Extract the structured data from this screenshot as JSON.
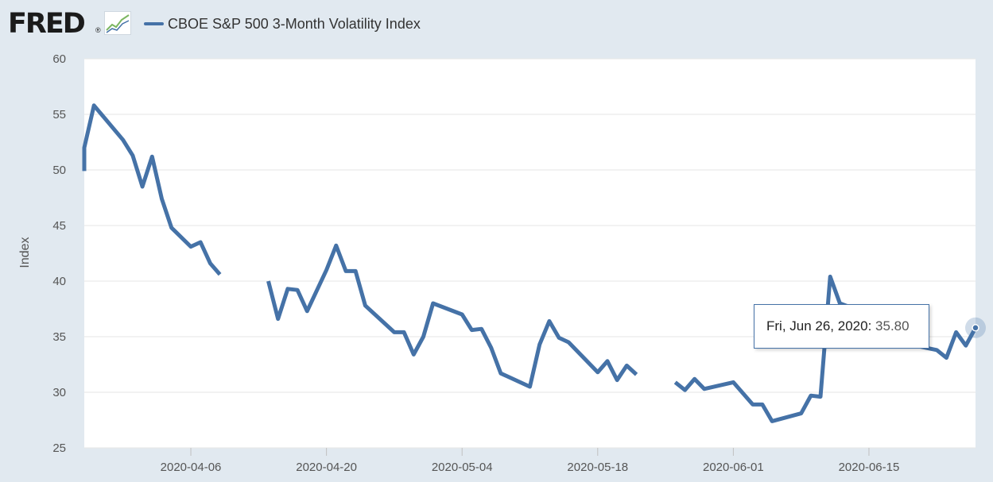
{
  "header": {
    "logo_text": "FRED",
    "logo_reg": "®",
    "logo_graph_icon": "line-chart-icon",
    "legend_label": "CBOE S&P 500 3-Month Volatility Index",
    "legend_color": "#4572a7"
  },
  "tooltip": {
    "date": "Fri, Jun 26, 2020:",
    "value": "35.80"
  },
  "chart_data": {
    "type": "line",
    "ylabel": "Index",
    "ylim": [
      25,
      60
    ],
    "yticks": [
      25,
      30,
      35,
      40,
      45,
      50,
      55,
      60
    ],
    "ytick_labels": [
      "25",
      "30",
      "35",
      "40",
      "45",
      "50",
      "55",
      "60"
    ],
    "xlim": [
      "2020-03-26",
      "2020-06-26"
    ],
    "xticks": [
      "2020-04-06",
      "2020-04-20",
      "2020-05-04",
      "2020-05-18",
      "2020-06-01",
      "2020-06-15"
    ],
    "xtick_labels": [
      "2020-04-06",
      "2020-04-20",
      "2020-05-04",
      "2020-05-18",
      "2020-06-01",
      "2020-06-15"
    ],
    "grid": "horizontal",
    "line_color": "#4572a7",
    "series": [
      {
        "values": [
          [
            "2020-03-26",
            49.9
          ],
          [
            "2020-03-26",
            52.0
          ],
          [
            "2020-03-27",
            55.8
          ],
          [
            "2020-03-30",
            52.7
          ],
          [
            "2020-03-31",
            51.3
          ],
          [
            "2020-04-01",
            48.5
          ],
          [
            "2020-04-02",
            51.2
          ],
          [
            "2020-04-03",
            47.4
          ],
          [
            "2020-04-04",
            44.8
          ],
          [
            "2020-04-06",
            43.1
          ],
          [
            "2020-04-07",
            43.5
          ],
          [
            "2020-04-08",
            41.6
          ],
          [
            "2020-04-09",
            40.6
          ],
          [
            null,
            null
          ],
          [
            "2020-04-14",
            40.0
          ],
          [
            "2020-04-15",
            36.6
          ],
          [
            "2020-04-16",
            39.3
          ],
          [
            "2020-04-17",
            39.2
          ],
          [
            "2020-04-18",
            37.3
          ],
          [
            "2020-04-20",
            41.0
          ],
          [
            "2020-04-21",
            43.2
          ],
          [
            "2020-04-22",
            40.9
          ],
          [
            "2020-04-23",
            40.9
          ],
          [
            "2020-04-24",
            37.8
          ],
          [
            "2020-04-27",
            35.4
          ],
          [
            "2020-04-28",
            35.4
          ],
          [
            "2020-04-29",
            33.4
          ],
          [
            "2020-04-30",
            35.0
          ],
          [
            "2020-05-01",
            38.0
          ],
          [
            "2020-05-04",
            37.0
          ],
          [
            "2020-05-05",
            35.6
          ],
          [
            "2020-05-06",
            35.7
          ],
          [
            "2020-05-07",
            34.0
          ],
          [
            "2020-05-08",
            31.7
          ],
          [
            "2020-05-11",
            30.5
          ],
          [
            "2020-05-12",
            34.3
          ],
          [
            "2020-05-13",
            36.4
          ],
          [
            "2020-05-14",
            34.9
          ],
          [
            "2020-05-15",
            34.5
          ],
          [
            "2020-05-18",
            31.8
          ],
          [
            "2020-05-19",
            32.8
          ],
          [
            "2020-05-20",
            31.1
          ],
          [
            "2020-05-21",
            32.4
          ],
          [
            "2020-05-22",
            31.6
          ],
          [
            null,
            null
          ],
          [
            "2020-05-26",
            30.9
          ],
          [
            "2020-05-27",
            30.2
          ],
          [
            "2020-05-28",
            31.2
          ],
          [
            "2020-05-29",
            30.3
          ],
          [
            "2020-06-01",
            30.9
          ],
          [
            "2020-06-03",
            28.9
          ],
          [
            "2020-06-04",
            28.9
          ],
          [
            "2020-06-05",
            27.4
          ],
          [
            "2020-06-08",
            28.1
          ],
          [
            "2020-06-09",
            29.7
          ],
          [
            "2020-06-10",
            29.6
          ],
          [
            "2020-06-11",
            40.4
          ],
          [
            "2020-06-12",
            38.0
          ],
          [
            "2020-06-15",
            37.0
          ],
          [
            "2020-06-16",
            36.0
          ],
          [
            "2020-06-17",
            34.7
          ],
          [
            "2020-06-22",
            33.8
          ],
          [
            "2020-06-23",
            33.1
          ],
          [
            "2020-06-24",
            35.4
          ],
          [
            "2020-06-25",
            34.2
          ],
          [
            "2020-06-26",
            35.8
          ]
        ]
      }
    ],
    "highlight_point": [
      "2020-06-26",
      35.8
    ]
  }
}
